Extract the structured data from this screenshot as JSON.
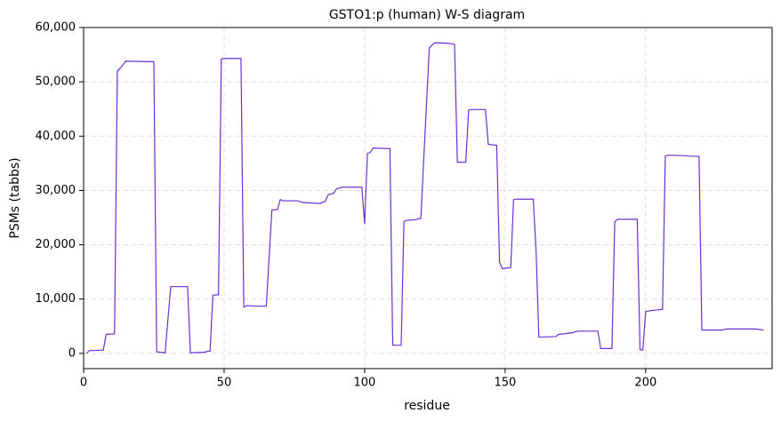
{
  "chart_data": {
    "type": "line",
    "title": "GSTO1:p (human) W-S diagram",
    "xlabel": "residue",
    "ylabel": "PSMs (tabbs)",
    "color": "#6a30d0",
    "grid": true,
    "x": [
      1,
      2,
      7,
      8,
      11,
      12,
      13,
      15,
      25,
      26,
      29,
      31,
      37,
      38,
      43,
      44,
      45,
      46,
      48,
      49,
      50,
      56,
      57,
      58,
      61,
      65,
      67,
      69,
      70,
      71,
      76,
      78,
      84,
      86,
      87,
      89,
      90,
      92,
      99,
      100,
      101,
      102,
      103,
      109,
      110,
      113,
      114,
      115,
      118,
      120,
      123,
      124,
      125,
      130,
      132,
      133,
      136,
      137,
      138,
      143,
      144,
      147,
      148,
      149,
      152,
      153,
      154,
      160,
      161,
      162,
      168,
      169,
      171,
      172,
      174,
      175,
      176,
      183,
      184,
      188,
      189,
      190,
      197,
      198,
      199,
      200,
      202,
      206,
      207,
      208,
      214,
      216,
      219,
      220,
      227,
      229,
      239,
      242
    ],
    "values": [
      0,
      500,
      600,
      3500,
      3600,
      52000,
      52500,
      53800,
      53700,
      300,
      100,
      12300,
      12300,
      100,
      200,
      400,
      400,
      10700,
      10800,
      54200,
      54300,
      54300,
      8500,
      8800,
      8700,
      8700,
      26400,
      26500,
      28300,
      28100,
      28100,
      27800,
      27600,
      28000,
      29200,
      29500,
      30300,
      30600,
      30600,
      23800,
      36800,
      37000,
      37800,
      37700,
      1500,
      1500,
      24300,
      24500,
      24600,
      24900,
      56200,
      56800,
      57200,
      57100,
      56900,
      35200,
      35200,
      44800,
      44900,
      44900,
      38500,
      38300,
      16800,
      15600,
      15800,
      28300,
      28400,
      28400,
      19000,
      3000,
      3100,
      3500,
      3600,
      3700,
      3800,
      4000,
      4100,
      4100,
      900,
      900,
      24200,
      24700,
      24700,
      700,
      600,
      7700,
      7900,
      8100,
      36300,
      36500,
      36400,
      36300,
      36300,
      4300,
      4300,
      4500,
      4500,
      4300
    ],
    "xlim": [
      0,
      245
    ],
    "xticks": [
      0,
      50,
      100,
      150,
      200
    ],
    "ylim": [
      -2800,
      60000
    ],
    "yticks": [
      0,
      {
        "value": 10000,
        "label": "10,000"
      },
      {
        "value": 20000,
        "label": "20,000"
      },
      {
        "value": 30000,
        "label": "30,000"
      },
      {
        "value": 40000,
        "label": "40,000"
      },
      {
        "value": 50000,
        "label": "50,000"
      },
      {
        "value": 60000,
        "label": "60,000"
      }
    ]
  }
}
